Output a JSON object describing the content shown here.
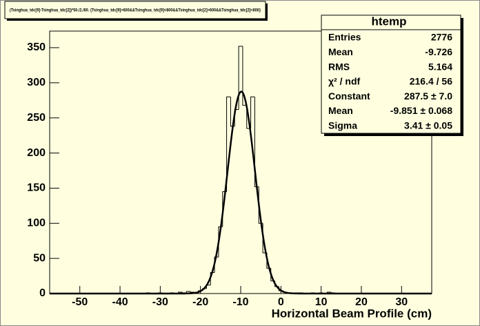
{
  "chart_data": {
    "type": "histogram",
    "title": "(Tsinghua_tdc[9]-Tsinghua_tdc[2])*50./2./60. {Tsinghua_tdc[9]>600&&Tsinghua_tdc[9]<800&&Tsinghua_tdc[2]>600&&Tsinghua_tdc[2]<800}",
    "x_label": "Horizontal Beam Profile (cm)",
    "bins": [
      -57.5,
      -56.5,
      -55.5,
      -54.5,
      -53.5,
      -52.5,
      -51.5,
      -50.5,
      -49.5,
      -48.5,
      -47.5,
      -46.5,
      -45.5,
      -44.5,
      -43.5,
      -42.5,
      -41.5,
      -40.5,
      -39.5,
      -38.5,
      -37.5,
      -36.5,
      -35.5,
      -34.5,
      -33.5,
      -32.5,
      -31.5,
      -30.5,
      -29.5,
      -28.5,
      -27.5,
      -26.5,
      -25.5,
      -24.5,
      -23.5,
      -22.5,
      -21.5,
      -20.5,
      -19.5,
      -18.5,
      -17.5,
      -16.5,
      -15.5,
      -14.5,
      -13.5,
      -12.5,
      -11.5,
      -10.5,
      -9.5,
      -8.5,
      -7.5,
      -6.5,
      -5.5,
      -4.5,
      -3.5,
      -2.5,
      -1.5,
      -0.5,
      0.5,
      1.5,
      2.5,
      3.5,
      4.5,
      5.5,
      6.5,
      7.5,
      8.5,
      9.5,
      10.5,
      11.5,
      12.5,
      13.5,
      14.5,
      15.5,
      16.5,
      17.5,
      18.5,
      19.5,
      20.5,
      21.5,
      22.5,
      23.5,
      24.5,
      25.5,
      26.5,
      27.5,
      28.5,
      29.5,
      30.5,
      31.5,
      32.5,
      33.5,
      34.5,
      35.5,
      36.5,
      37.5
    ],
    "values": [
      0,
      0,
      0,
      0,
      0,
      0,
      0,
      0,
      0,
      0,
      0,
      0,
      0,
      0,
      0,
      0,
      0,
      0,
      0,
      0,
      0,
      0,
      0,
      0,
      1,
      0,
      0,
      1,
      0,
      0,
      1,
      0,
      2,
      1,
      3,
      2,
      1,
      4,
      7,
      12,
      30,
      52,
      95,
      145,
      280,
      238,
      262,
      352,
      268,
      235,
      280,
      152,
      100,
      58,
      36,
      18,
      10,
      4,
      2,
      1,
      0,
      1,
      1,
      0,
      0,
      1,
      0,
      1,
      0,
      2,
      1,
      0,
      0,
      0,
      0,
      0,
      0,
      0,
      0,
      0,
      0,
      0,
      0,
      0,
      0,
      0,
      0,
      0,
      0,
      0,
      0,
      0,
      0,
      0,
      0
    ],
    "color": "#000000",
    "fit": {
      "constant": 287.5,
      "mean": -9.851,
      "sigma": 3.41
    },
    "xlim": [
      -57.5,
      37.5
    ],
    "xticks": [
      -50,
      -40,
      -30,
      -20,
      -10,
      0,
      10,
      20,
      30
    ],
    "ylim": [
      0,
      373.6
    ],
    "yticks": [
      0,
      50,
      100,
      150,
      200,
      250,
      300,
      350
    ],
    "stats": {
      "title": "htemp",
      "rows": [
        [
          "Entries",
          "2776"
        ],
        [
          "Mean",
          "-9.726"
        ],
        [
          "RMS",
          "5.164"
        ],
        [
          "χ² / ndf",
          "216.4 / 56"
        ],
        [
          "Constant",
          "287.5 ± 7.0"
        ],
        [
          "Mean",
          "-9.851 ± 0.068"
        ],
        [
          "Sigma",
          "3.41 ± 0.05"
        ]
      ]
    }
  }
}
